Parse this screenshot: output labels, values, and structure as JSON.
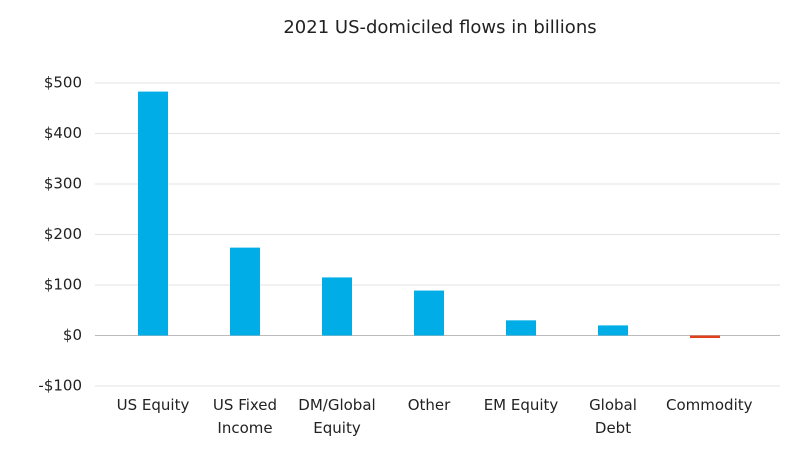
{
  "chart_data": {
    "type": "bar",
    "title": "2021 US-domiciled flows in billions",
    "categories": [
      "US Equity",
      "US Fixed Income",
      "DM/Global Equity",
      "Other",
      "EM Equity",
      "Global Debt",
      "Commodity"
    ],
    "values": [
      483,
      174,
      115,
      89,
      30,
      20,
      -5
    ],
    "colors": [
      "#00ade6",
      "#00ade6",
      "#00ade6",
      "#00ade6",
      "#00ade6",
      "#00ade6",
      "#e0401c"
    ],
    "ylim": [
      -100,
      500
    ],
    "yticks": [
      {
        "value": -100,
        "label": "-$100"
      },
      {
        "value": 0,
        "label": "$0"
      },
      {
        "value": 100,
        "label": "$100"
      },
      {
        "value": 200,
        "label": "$200"
      },
      {
        "value": 300,
        "label": "$300"
      },
      {
        "value": 400,
        "label": "$400"
      },
      {
        "value": 500,
        "label": "$500"
      }
    ],
    "grid": true
  }
}
